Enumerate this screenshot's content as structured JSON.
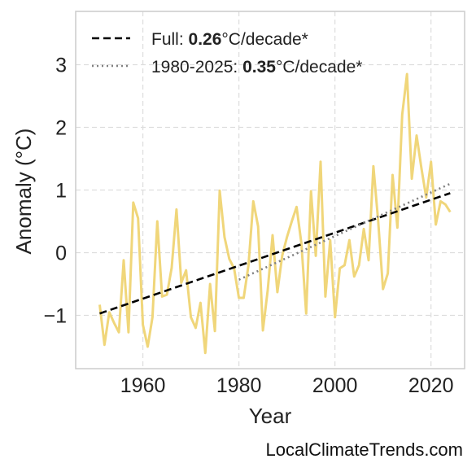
{
  "chart_data": {
    "type": "line",
    "title": "",
    "xlabel": "Year",
    "ylabel": "Anomaly (°C)",
    "xlim": [
      1946,
      2027
    ],
    "ylim": [
      -1.85,
      3.85
    ],
    "xticks": [
      1960,
      1980,
      2000,
      2020
    ],
    "yticks": [
      -1,
      0,
      1,
      2,
      3
    ],
    "ytick_labels": [
      "−1",
      "0",
      "1",
      "2",
      "3"
    ],
    "grid": true,
    "legend_position": "top-left",
    "colors": {
      "series": "#f0d67a",
      "full_trend": "#000000",
      "recent_trend": "#808080"
    },
    "series": [
      {
        "x": [
          1951,
          1952,
          1953,
          1954,
          1955,
          1956,
          1957,
          1958,
          1959,
          1960,
          1961,
          1962,
          1963,
          1964,
          1965,
          1966,
          1967,
          1968,
          1969,
          1970,
          1971,
          1972,
          1973,
          1974,
          1975,
          1976,
          1977,
          1978,
          1979,
          1980,
          1981,
          1982,
          1983,
          1984,
          1985,
          1986,
          1987,
          1988,
          1989,
          1990,
          1991,
          1992,
          1993,
          1994,
          1995,
          1996,
          1997,
          1998,
          1999,
          2000,
          2001,
          2002,
          2003,
          2004,
          2005,
          2006,
          2007,
          2008,
          2009,
          2010,
          2011,
          2012,
          2013,
          2014,
          2015,
          2016,
          2017,
          2018,
          2019,
          2020,
          2021,
          2022,
          2023,
          2024
        ],
        "y": [
          -0.83,
          -1.47,
          -0.95,
          -1.12,
          -1.27,
          -0.12,
          -1.27,
          0.8,
          0.55,
          -1.15,
          -1.5,
          -1.03,
          0.5,
          -0.7,
          -0.67,
          -0.24,
          0.69,
          -0.48,
          -0.28,
          -1.03,
          -1.2,
          -0.8,
          -1.6,
          -0.5,
          -1.25,
          0.99,
          0.25,
          -0.1,
          -0.25,
          -0.72,
          -0.72,
          -0.2,
          0.82,
          0.42,
          -1.24,
          -0.6,
          0.28,
          -0.63,
          -0.05,
          0.25,
          0.5,
          0.73,
          0.15,
          -0.97,
          0.98,
          -0.05,
          1.45,
          -0.7,
          0.2,
          -1.03,
          -0.25,
          -0.2,
          0.2,
          -0.38,
          -0.2,
          0.38,
          -0.12,
          1.38,
          0.5,
          -0.58,
          -0.33,
          1.24,
          0.4,
          2.2,
          2.85,
          1.18,
          1.87,
          1.35,
          0.88,
          1.45,
          0.45,
          0.82,
          0.77,
          0.65
        ]
      }
    ],
    "trends": [
      {
        "label_prefix": "Full: ",
        "rate": "0.26",
        "label_suffix": "°C/decade*",
        "style": "dashed",
        "x": [
          1951,
          2024
        ],
        "y": [
          -0.97,
          0.95
        ]
      },
      {
        "label_prefix": "1980-2025: ",
        "rate": "0.35",
        "label_suffix": "°C/decade*",
        "style": "dotted",
        "x": [
          1980,
          2024
        ],
        "y": [
          -0.43,
          1.1
        ]
      }
    ]
  },
  "footer": "LocalClimateTrends.com"
}
